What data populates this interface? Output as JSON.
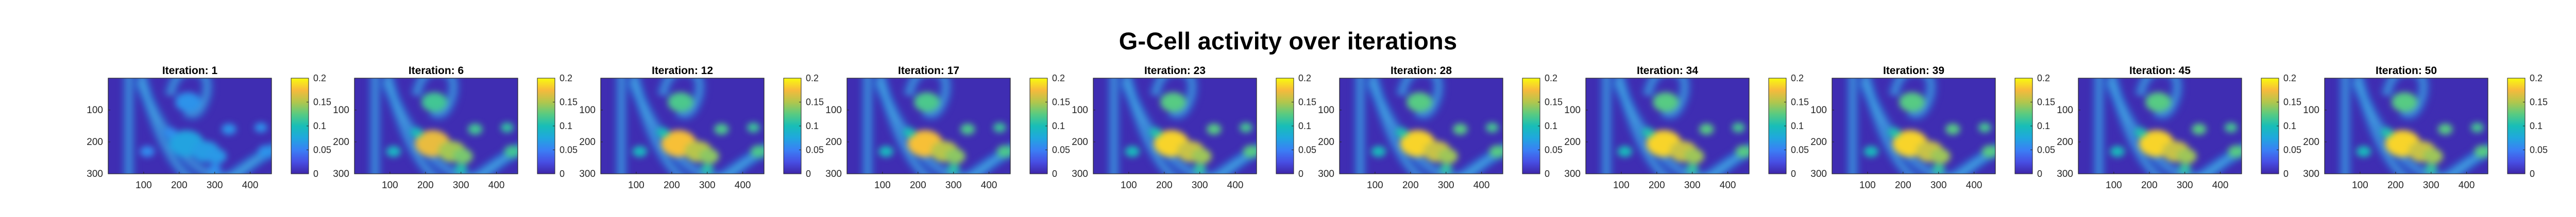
{
  "title": "G-Cell activity over iterations",
  "chart_data": [
    {
      "type": "heatmap",
      "title": "Iteration: 1",
      "level": 0.15,
      "xticks": [
        "100",
        "200",
        "300",
        "400"
      ],
      "yticks": [
        "100",
        "200",
        "300"
      ],
      "colorbar_ticks": [
        "0",
        "0.05",
        "0.1",
        "0.15",
        "0.2"
      ],
      "colormap": "parula",
      "clim": [
        0,
        0.2
      ]
    },
    {
      "type": "heatmap",
      "title": "Iteration: 6",
      "level": 0.8,
      "xticks": [
        "100",
        "200",
        "300",
        "400"
      ],
      "yticks": [
        "100",
        "200",
        "300"
      ],
      "colorbar_ticks": [
        "0",
        "0.05",
        "0.1",
        "0.15",
        "0.2"
      ],
      "colormap": "parula",
      "clim": [
        0,
        0.2
      ]
    },
    {
      "type": "heatmap",
      "title": "Iteration: 12",
      "level": 0.85,
      "xticks": [
        "100",
        "200",
        "300",
        "400"
      ],
      "yticks": [
        "100",
        "200",
        "300"
      ],
      "colorbar_ticks": [
        "0",
        "0.05",
        "0.1",
        "0.15",
        "0.2"
      ],
      "colormap": "parula",
      "clim": [
        0,
        0.2
      ]
    },
    {
      "type": "heatmap",
      "title": "Iteration: 17",
      "level": 0.85,
      "xticks": [
        "100",
        "200",
        "300",
        "400"
      ],
      "yticks": [
        "100",
        "200",
        "300"
      ],
      "colorbar_ticks": [
        "0",
        "0.05",
        "0.1",
        "0.15",
        "0.2"
      ],
      "colormap": "parula",
      "clim": [
        0,
        0.2
      ]
    },
    {
      "type": "heatmap",
      "title": "Iteration: 23",
      "level": 0.9,
      "xticks": [
        "100",
        "200",
        "300",
        "400"
      ],
      "yticks": [
        "100",
        "200",
        "300"
      ],
      "colorbar_ticks": [
        "0",
        "0.05",
        "0.1",
        "0.15",
        "0.2"
      ],
      "colormap": "parula",
      "clim": [
        0,
        0.2
      ]
    },
    {
      "type": "heatmap",
      "title": "Iteration: 28",
      "level": 0.9,
      "xticks": [
        "100",
        "200",
        "300",
        "400"
      ],
      "yticks": [
        "100",
        "200",
        "300"
      ],
      "colorbar_ticks": [
        "0",
        "0.05",
        "0.1",
        "0.15",
        "0.2"
      ],
      "colormap": "parula",
      "clim": [
        0,
        0.2
      ]
    },
    {
      "type": "heatmap",
      "title": "Iteration: 34",
      "level": 0.9,
      "xticks": [
        "100",
        "200",
        "300",
        "400"
      ],
      "yticks": [
        "100",
        "200",
        "300"
      ],
      "colorbar_ticks": [
        "0",
        "0.05",
        "0.1",
        "0.15",
        "0.2"
      ],
      "colormap": "parula",
      "clim": [
        0,
        0.2
      ]
    },
    {
      "type": "heatmap",
      "title": "Iteration: 39",
      "level": 0.9,
      "xticks": [
        "100",
        "200",
        "300",
        "400"
      ],
      "yticks": [
        "100",
        "200",
        "300"
      ],
      "colorbar_ticks": [
        "0",
        "0.05",
        "0.1",
        "0.15",
        "0.2"
      ],
      "colormap": "parula",
      "clim": [
        0,
        0.2
      ]
    },
    {
      "type": "heatmap",
      "title": "Iteration: 45",
      "level": 0.9,
      "xticks": [
        "100",
        "200",
        "300",
        "400"
      ],
      "yticks": [
        "100",
        "200",
        "300"
      ],
      "colorbar_ticks": [
        "0",
        "0.05",
        "0.1",
        "0.15",
        "0.2"
      ],
      "colormap": "parula",
      "clim": [
        0,
        0.2
      ]
    },
    {
      "type": "heatmap",
      "title": "Iteration: 50",
      "level": 0.9,
      "xticks": [
        "100",
        "200",
        "300",
        "400"
      ],
      "yticks": [
        "100",
        "200",
        "300"
      ],
      "colorbar_ticks": [
        "0",
        "0.05",
        "0.1",
        "0.15",
        "0.2"
      ],
      "colormap": "parula",
      "clim": [
        0,
        0.2
      ]
    }
  ]
}
